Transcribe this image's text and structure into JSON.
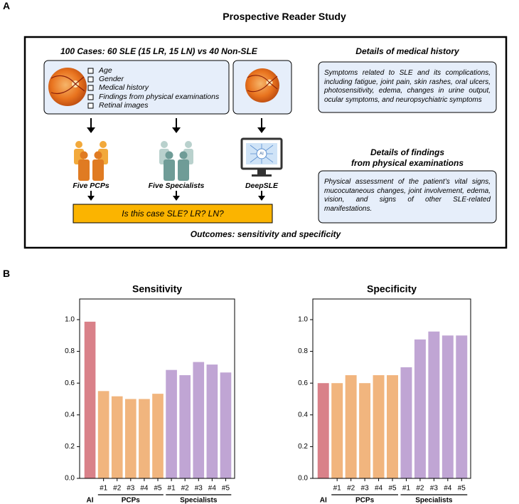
{
  "panel_a": {
    "label": "A",
    "title": "Prospective Reader Study",
    "cases_heading": "100 Cases: 60 SLE (15 LR, 15 LN) vs 40 Non-SLE",
    "checklist": [
      "Age",
      "Gender",
      "Medical history",
      "Findings from physical examinations",
      "Retinal images"
    ],
    "readers": [
      "Five PCPs",
      "Five Specialists",
      "DeepSLE"
    ],
    "monitor_badge": "AI",
    "question": "Is this case SLE? LR? LN?",
    "outcomes": "Outcomes: sensitivity and specificity",
    "history_heading": "Details of medical history",
    "history_text": "Symptoms related to SLE and its complications, including fatigue, joint pain, skin rashes, oral ulcers, photosensitivity, edema, changes in urine output, ocular symptoms, and neuropsychiatric symptoms",
    "findings_heading": [
      "Details of findings",
      "from physical examinations"
    ],
    "findings_text": "Physical assessment of the patient’s vital signs, mucocutaneous changes, joint involvement, edema, vision, and signs of other SLE-related manifestations."
  },
  "panel_b": {
    "label": "B"
  },
  "chart_data": [
    {
      "type": "bar",
      "title": "Sensitivity",
      "categories": [
        null,
        "#1",
        "#2",
        "#3",
        "#4",
        "#5",
        "#1",
        "#2",
        "#3",
        "#4",
        "#5"
      ],
      "values": [
        0.987,
        0.55,
        0.517,
        0.5,
        0.5,
        0.533,
        0.683,
        0.65,
        0.733,
        0.717,
        0.667
      ],
      "colors": [
        "#d98189",
        "#f1b57e",
        "#f1b57e",
        "#f1b57e",
        "#f1b57e",
        "#f1b57e",
        "#c0a5d4",
        "#c0a5d4",
        "#c0a5d4",
        "#c0a5d4",
        "#c0a5d4"
      ],
      "groups": [
        {
          "label": "AI",
          "from": 0,
          "to": 0
        },
        {
          "label": "PCPs",
          "from": 1,
          "to": 5
        },
        {
          "label": "Specialists",
          "from": 6,
          "to": 10
        }
      ],
      "ylim": [
        0,
        1.13
      ],
      "yticks": [
        {
          "value": 0,
          "label": "0.0"
        },
        {
          "value": 0.2,
          "label": "0.2"
        },
        {
          "value": 0.4,
          "label": "0.4"
        },
        {
          "value": 0.6,
          "label": "0.6"
        },
        {
          "value": 0.8,
          "label": "0.8"
        },
        {
          "value": 1,
          "label": "1.0"
        }
      ],
      "grid": false
    },
    {
      "type": "bar",
      "title": "Specificity",
      "categories": [
        null,
        "#1",
        "#2",
        "#3",
        "#4",
        "#5",
        "#1",
        "#2",
        "#3",
        "#4",
        "#5"
      ],
      "values": [
        0.6,
        0.6,
        0.65,
        0.6,
        0.65,
        0.65,
        0.7,
        0.875,
        0.925,
        0.9,
        0.9
      ],
      "colors": [
        "#d98189",
        "#f1b57e",
        "#f1b57e",
        "#f1b57e",
        "#f1b57e",
        "#f1b57e",
        "#c0a5d4",
        "#c0a5d4",
        "#c0a5d4",
        "#c0a5d4",
        "#c0a5d4"
      ],
      "groups": [
        {
          "label": "AI",
          "from": 0,
          "to": 0
        },
        {
          "label": "PCPs",
          "from": 1,
          "to": 5
        },
        {
          "label": "Specialists",
          "from": 6,
          "to": 10
        }
      ],
      "ylim": [
        0,
        1.13
      ],
      "yticks": [
        {
          "value": 0,
          "label": "0.0"
        },
        {
          "value": 0.2,
          "label": "0.2"
        },
        {
          "value": 0.4,
          "label": "0.4"
        },
        {
          "value": 0.6,
          "label": "0.6"
        },
        {
          "value": 0.8,
          "label": "0.8"
        },
        {
          "value": 1,
          "label": "1.0"
        }
      ],
      "grid": false
    }
  ]
}
